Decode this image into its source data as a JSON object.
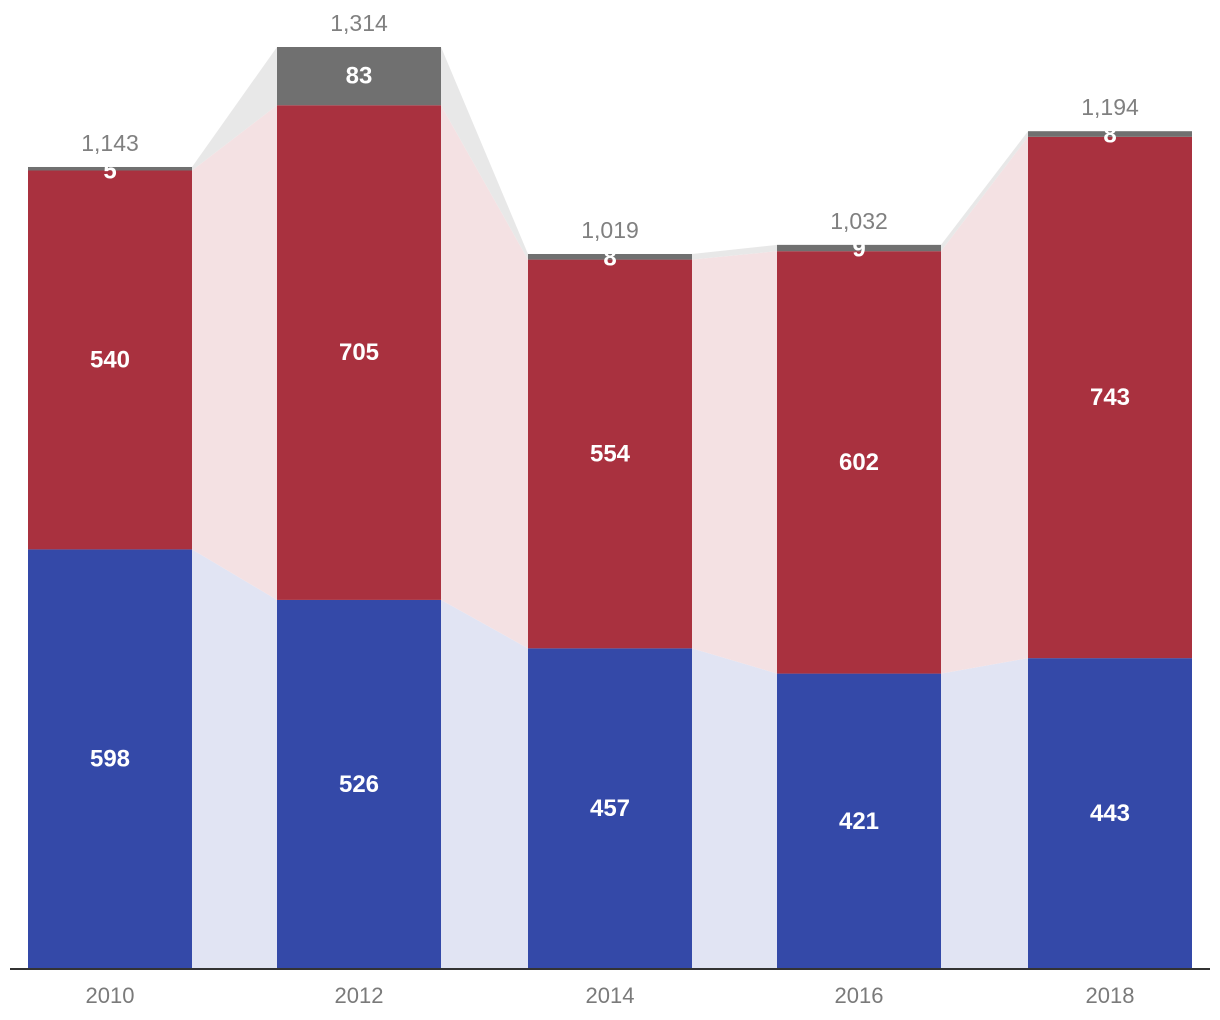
{
  "chart_data": {
    "type": "bar",
    "stacked": true,
    "categories": [
      "2010",
      "2012",
      "2014",
      "2016",
      "2018"
    ],
    "series": [
      {
        "values": [
          598,
          526,
          457,
          421,
          443
        ],
        "color": "#3449a8",
        "connector_color": "#e1e4f3"
      },
      {
        "values": [
          540,
          705,
          554,
          602,
          743
        ],
        "color": "#a9313f",
        "connector_color": "#f4e1e3"
      },
      {
        "values": [
          5,
          83,
          8,
          9,
          8
        ],
        "color": "#707070",
        "connector_color": "#e8e8e8"
      }
    ],
    "totals": [
      "1,143",
      "1,314",
      "1,019",
      "1,032",
      "1,194"
    ],
    "ylim": [
      0,
      1314
    ],
    "grid": false,
    "legend": "none"
  }
}
